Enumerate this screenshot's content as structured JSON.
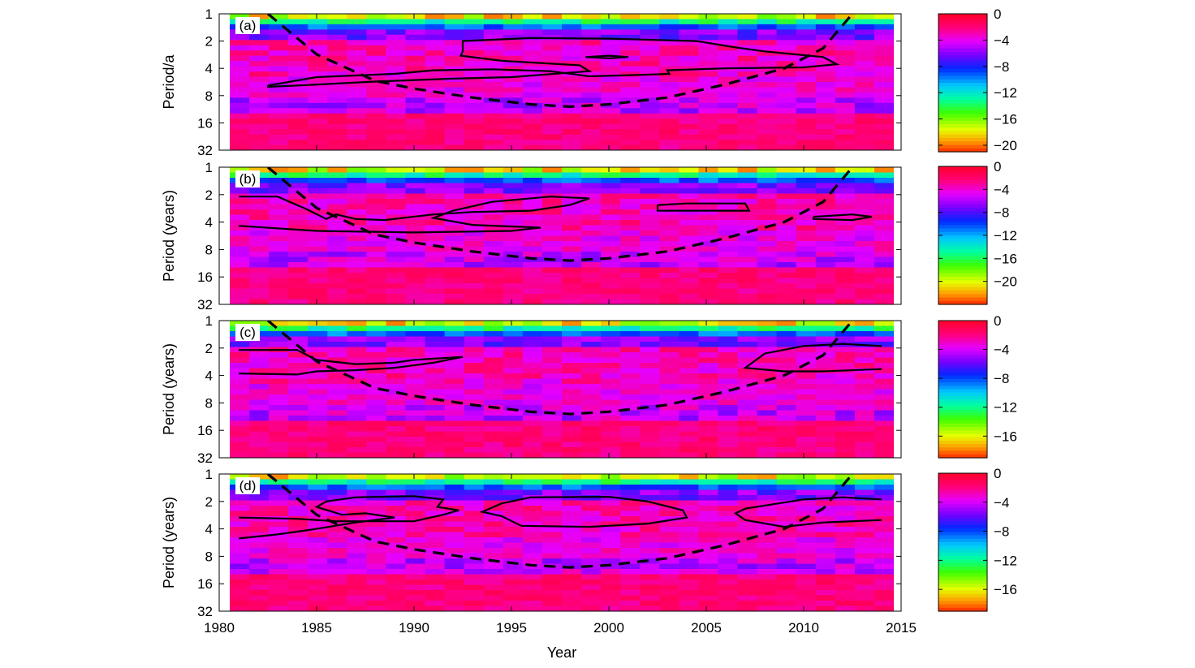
{
  "chart_data": [
    {
      "type": "heatmap",
      "panel_label": "(a)",
      "ylabel": "Period/a",
      "y_ticks": [
        "1",
        "2",
        "4",
        "8",
        "16",
        "32"
      ],
      "ylim": [
        1,
        32
      ],
      "y_scale": "log2",
      "y_reversed": true,
      "colorbar_ticks": [
        0,
        -4,
        -8,
        -12,
        -16,
        -20
      ],
      "colorbar_range": [
        -21,
        0
      ],
      "contours": [
        [
          [
            1982.5,
            6.2
          ],
          [
            1985,
            5.0
          ],
          [
            1989,
            4.6
          ],
          [
            1991,
            4.2
          ],
          [
            1994,
            4.1
          ],
          [
            1997,
            4.3
          ],
          [
            1999,
            4.9
          ],
          [
            2002,
            4.7
          ],
          [
            2003.1,
            4.6
          ],
          [
            2003,
            4.2
          ],
          [
            2006,
            4.0
          ],
          [
            2010,
            3.9
          ],
          [
            2011.7,
            3.6
          ],
          [
            2011,
            3.0
          ],
          [
            2008,
            2.6
          ],
          [
            2006.5,
            2.35
          ],
          [
            2004.5,
            2.0
          ],
          [
            2000,
            1.88
          ],
          [
            1996,
            1.85
          ],
          [
            1992.5,
            2.0
          ],
          [
            1992.5,
            2.6
          ],
          [
            1992.4,
            2.9
          ],
          [
            1994.5,
            3.3
          ],
          [
            1998.5,
            3.7
          ],
          [
            1999,
            4.3
          ],
          [
            1995,
            5.0
          ],
          [
            1992,
            5.2
          ],
          [
            1988,
            5.6
          ],
          [
            1984,
            6.2
          ],
          [
            1982.5,
            6.4
          ],
          [
            1982.5,
            6.2
          ]
        ],
        [
          [
            1998.8,
            3.0
          ],
          [
            2000,
            2.9
          ],
          [
            2001,
            3.0
          ],
          [
            2000,
            3.1
          ],
          [
            1998.8,
            3.0
          ]
        ]
      ],
      "coi": [
        [
          1982.5,
          1
        ],
        [
          1985,
          2.8
        ],
        [
          1988,
          5.5
        ],
        [
          1990,
          6.7
        ],
        [
          1993,
          8.4
        ],
        [
          1996,
          10.0
        ],
        [
          1998,
          10.6
        ],
        [
          2000,
          10.0
        ],
        [
          2003,
          8.4
        ],
        [
          2006,
          6.0
        ],
        [
          2009,
          4.0
        ],
        [
          2011,
          2.4
        ],
        [
          2012.5,
          1
        ]
      ]
    },
    {
      "type": "heatmap",
      "panel_label": "(b)",
      "ylabel": "Period (years)",
      "y_ticks": [
        "1",
        "2",
        "4",
        "8",
        "16",
        "32"
      ],
      "ylim": [
        1,
        32
      ],
      "y_scale": "log2",
      "y_reversed": true,
      "colorbar_ticks": [
        0,
        -4,
        -8,
        -12,
        -16,
        -20
      ],
      "colorbar_range": [
        -24,
        0
      ],
      "contours": [
        [
          [
            1981,
            4.4
          ],
          [
            1985,
            5.0
          ],
          [
            1990,
            5.2
          ],
          [
            1995,
            5.0
          ],
          [
            1996.5,
            4.6
          ],
          [
            1993,
            4.3
          ],
          [
            1991,
            3.6
          ],
          [
            1992,
            3.0
          ],
          [
            1994,
            2.4
          ],
          [
            1997,
            2.1
          ],
          [
            1999,
            2.2
          ],
          [
            1998,
            2.6
          ],
          [
            1996,
            3.0
          ],
          [
            1993,
            3.1
          ],
          [
            1991,
            3.3
          ],
          [
            1988.5,
            3.8
          ],
          [
            1987,
            3.7
          ],
          [
            1986,
            3.3
          ],
          [
            1985.5,
            3.7
          ],
          [
            1984.5,
            2.9
          ],
          [
            1983,
            2.1
          ],
          [
            1981,
            2.1
          ]
        ],
        [
          [
            2002.5,
            2.6
          ],
          [
            2004,
            2.5
          ],
          [
            2007,
            2.5
          ],
          [
            2007.2,
            3.0
          ],
          [
            2005,
            3.0
          ],
          [
            2002.5,
            3.0
          ],
          [
            2002.5,
            2.6
          ]
        ],
        [
          [
            2010.5,
            3.5
          ],
          [
            2012.5,
            3.3
          ],
          [
            2013.5,
            3.5
          ],
          [
            2012.5,
            3.8
          ],
          [
            2010.5,
            3.7
          ],
          [
            2010.5,
            3.5
          ]
        ]
      ],
      "coi": [
        [
          1982.5,
          1
        ],
        [
          1985,
          2.8
        ],
        [
          1988,
          5.5
        ],
        [
          1990,
          6.7
        ],
        [
          1993,
          8.4
        ],
        [
          1996,
          10.0
        ],
        [
          1998,
          10.6
        ],
        [
          2000,
          10.0
        ],
        [
          2003,
          8.4
        ],
        [
          2006,
          6.0
        ],
        [
          2009,
          4.0
        ],
        [
          2011,
          2.4
        ],
        [
          2012.5,
          1
        ]
      ]
    },
    {
      "type": "heatmap",
      "panel_label": "(c)",
      "ylabel": "Period (years)",
      "y_ticks": [
        "1",
        "2",
        "4",
        "8",
        "16",
        "32"
      ],
      "ylim": [
        1,
        32
      ],
      "y_scale": "log2",
      "y_reversed": true,
      "colorbar_ticks": [
        0,
        -4,
        -8,
        -12,
        -16
      ],
      "colorbar_range": [
        -19,
        0
      ],
      "contours": [
        [
          [
            1981,
            2.1
          ],
          [
            1984,
            2.1
          ],
          [
            1985,
            2.7
          ],
          [
            1987,
            3.0
          ],
          [
            1989,
            2.9
          ],
          [
            1990,
            2.7
          ],
          [
            1992.5,
            2.5
          ],
          [
            1991,
            2.9
          ],
          [
            1989,
            3.3
          ],
          [
            1987,
            3.5
          ],
          [
            1985,
            3.6
          ],
          [
            1984,
            3.9
          ],
          [
            1981,
            3.8
          ]
        ],
        [
          [
            2014,
            1.9
          ],
          [
            2012,
            1.8
          ],
          [
            2010,
            1.9
          ],
          [
            2008,
            2.3
          ],
          [
            2007,
            3.3
          ],
          [
            2009,
            3.6
          ],
          [
            2011,
            3.6
          ],
          [
            2014,
            3.4
          ]
        ]
      ],
      "coi": [
        [
          1982.5,
          1
        ],
        [
          1985,
          2.8
        ],
        [
          1988,
          5.5
        ],
        [
          1990,
          6.7
        ],
        [
          1993,
          8.4
        ],
        [
          1996,
          10.0
        ],
        [
          1998,
          10.6
        ],
        [
          2000,
          10.0
        ],
        [
          2003,
          8.4
        ],
        [
          2006,
          6.0
        ],
        [
          2009,
          4.0
        ],
        [
          2011,
          2.4
        ],
        [
          2012.5,
          1
        ]
      ]
    },
    {
      "type": "heatmap",
      "panel_label": "(d)",
      "ylabel": "Period (years)",
      "y_ticks": [
        "1",
        "2",
        "4",
        "8",
        "16",
        "32"
      ],
      "ylim": [
        1,
        32
      ],
      "y_scale": "log2",
      "y_reversed": true,
      "colorbar_ticks": [
        0,
        -4,
        -8,
        -12,
        -16
      ],
      "colorbar_range": [
        -19,
        0
      ],
      "contours": [
        [
          [
            1981,
            5.1
          ],
          [
            1983,
            4.6
          ],
          [
            1985,
            4.0
          ],
          [
            1987,
            3.4
          ],
          [
            1989,
            3.0
          ],
          [
            1987.5,
            2.7
          ],
          [
            1986.3,
            2.8
          ],
          [
            1985,
            2.3
          ],
          [
            1985.5,
            2.0
          ],
          [
            1987,
            1.8
          ],
          [
            1990,
            1.75
          ],
          [
            1991.5,
            1.9
          ],
          [
            1991.2,
            2.3
          ],
          [
            1992.3,
            2.5
          ],
          [
            1991.5,
            2.8
          ],
          [
            1990,
            3.3
          ],
          [
            1988,
            3.3
          ],
          [
            1986,
            3.3
          ],
          [
            1984,
            3.1
          ],
          [
            1981,
            3.0
          ]
        ],
        [
          [
            1995.5,
            3.7
          ],
          [
            1999,
            3.8
          ],
          [
            2002,
            3.5
          ],
          [
            2004,
            3.0
          ],
          [
            2003.8,
            2.5
          ],
          [
            2002,
            2.0
          ],
          [
            2000,
            1.78
          ],
          [
            1996,
            1.8
          ],
          [
            1994.5,
            2.1
          ],
          [
            1993.5,
            2.6
          ],
          [
            1994.5,
            2.9
          ],
          [
            1995.5,
            3.7
          ]
        ],
        [
          [
            2014,
            1.9
          ],
          [
            2012,
            1.8
          ],
          [
            2010,
            1.9
          ],
          [
            2007,
            2.4
          ],
          [
            2006.5,
            2.7
          ],
          [
            2007,
            3.2
          ],
          [
            2009,
            3.8
          ],
          [
            2011,
            3.4
          ],
          [
            2014,
            3.2
          ]
        ]
      ],
      "coi": [
        [
          1982.5,
          1
        ],
        [
          1985,
          2.8
        ],
        [
          1988,
          5.5
        ],
        [
          1990,
          6.7
        ],
        [
          1993,
          8.4
        ],
        [
          1996,
          10.0
        ],
        [
          1998,
          10.6
        ],
        [
          2000,
          10.0
        ],
        [
          2003,
          8.4
        ],
        [
          2006,
          6.0
        ],
        [
          2009,
          4.0
        ],
        [
          2011,
          2.4
        ],
        [
          2012.5,
          1
        ]
      ]
    }
  ],
  "x_axis": {
    "label": "Year",
    "ticks": [
      "1980",
      "1985",
      "1990",
      "1995",
      "2000",
      "2005",
      "2010",
      "2015"
    ],
    "xlim": [
      1980,
      2015
    ]
  }
}
